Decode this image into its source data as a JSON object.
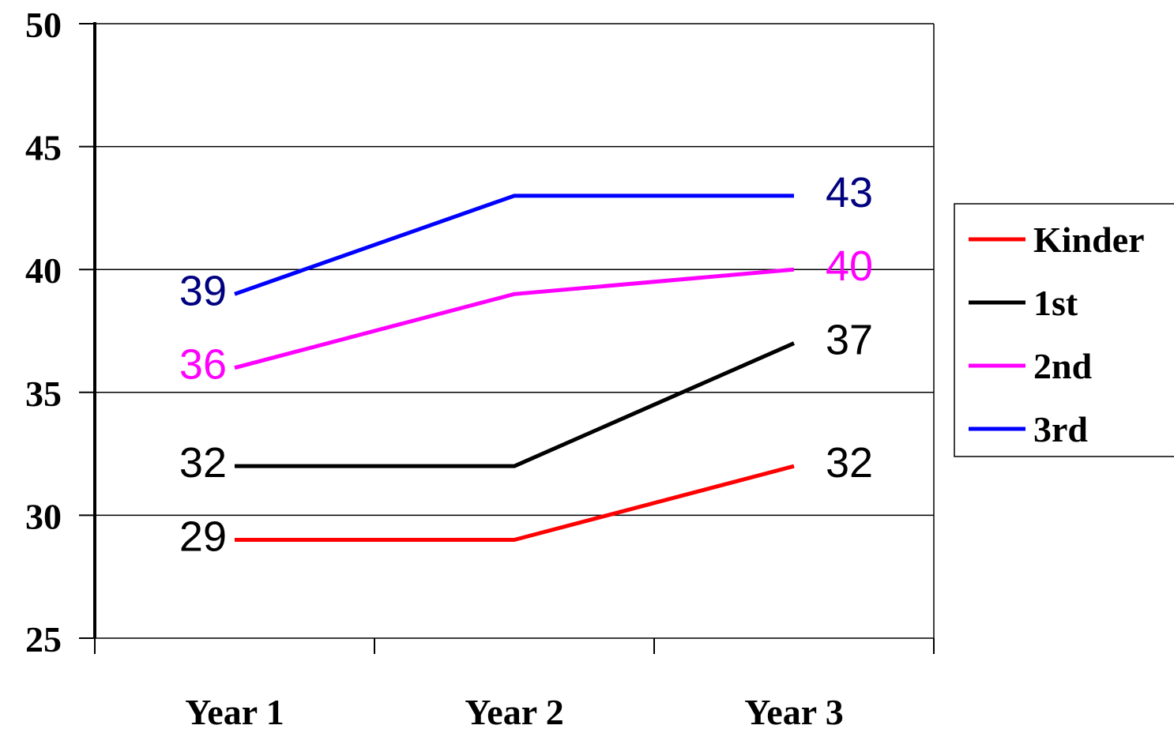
{
  "chart_data": {
    "type": "line",
    "categories": [
      "Year 1",
      "Year 2",
      "Year 3"
    ],
    "ylim": [
      25,
      50
    ],
    "yticks": [
      25,
      30,
      35,
      40,
      45,
      50
    ],
    "grid": true,
    "legend_position": "right",
    "series": [
      {
        "name": "Kinder",
        "color": "#ff0000",
        "label_color": "#000000",
        "values": [
          29,
          29,
          32
        ],
        "labels": [
          "29",
          "",
          "32"
        ]
      },
      {
        "name": "1st",
        "color": "#000000",
        "label_color": "#000000",
        "values": [
          32,
          32,
          37
        ],
        "labels": [
          "32",
          "",
          "37"
        ]
      },
      {
        "name": "2nd",
        "color": "#ff00ff",
        "label_color": "#ff00ff",
        "values": [
          36,
          39,
          40
        ],
        "labels": [
          "36",
          "",
          "40"
        ]
      },
      {
        "name": "3rd",
        "color": "#0000ff",
        "label_color": "#000080",
        "values": [
          39,
          43,
          43
        ],
        "labels": [
          "39",
          "",
          "43"
        ]
      }
    ]
  }
}
